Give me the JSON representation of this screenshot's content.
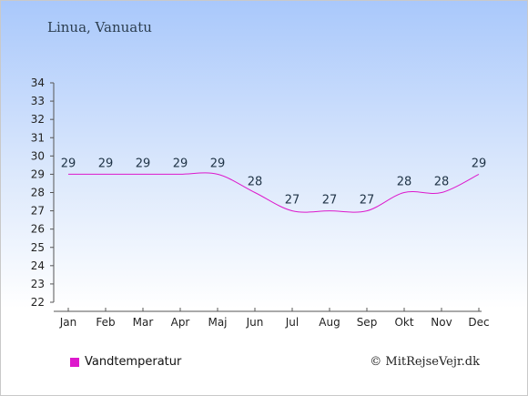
{
  "title": "Linua, Vanuatu",
  "credit": "© MitRejseVejr.dk",
  "colors": {
    "series": "#dd18cc",
    "axis": "#555555"
  },
  "chart_data": {
    "type": "line",
    "categories": [
      "Jan",
      "Feb",
      "Mar",
      "Apr",
      "Maj",
      "Jun",
      "Jul",
      "Aug",
      "Sep",
      "Okt",
      "Nov",
      "Dec"
    ],
    "series": [
      {
        "name": "Vandtemperatur",
        "values": [
          29,
          29,
          29,
          29,
          29,
          28,
          27,
          27,
          27,
          28,
          28,
          29
        ]
      }
    ],
    "ylim": [
      22,
      34
    ],
    "yticks": [
      22,
      23,
      24,
      25,
      26,
      27,
      28,
      29,
      30,
      31,
      32,
      33,
      34
    ],
    "grid": false,
    "legend": "bottom-left"
  }
}
